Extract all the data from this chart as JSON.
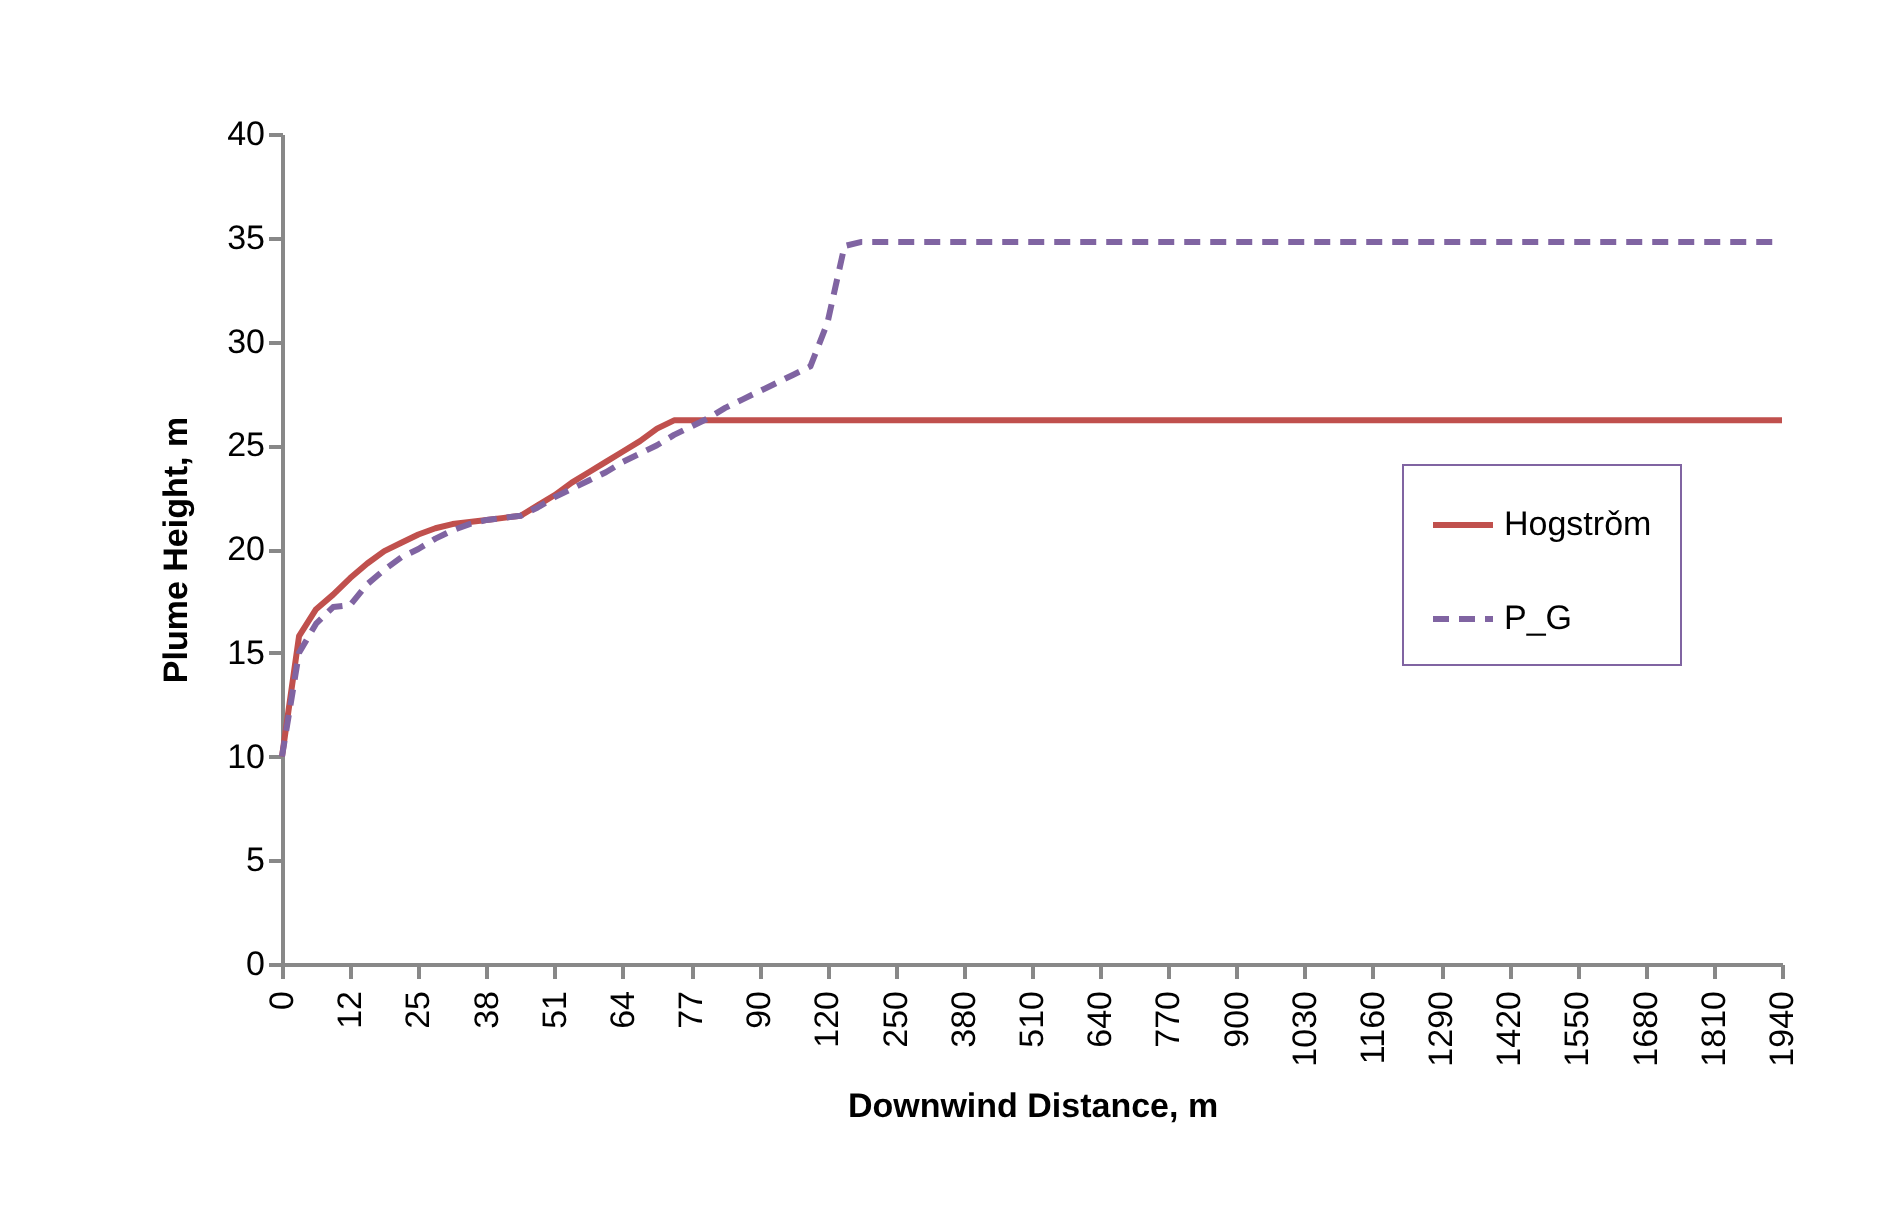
{
  "chart_data": {
    "type": "line",
    "xlabel": "Downwind Distance,  m",
    "ylabel": "Plume Height, m",
    "categories": [
      "0",
      null,
      null,
      null,
      "12",
      null,
      null,
      null,
      "25",
      null,
      null,
      null,
      "38",
      null,
      null,
      null,
      "51",
      null,
      null,
      null,
      "64",
      null,
      null,
      null,
      "77",
      null,
      null,
      null,
      "90",
      null,
      null,
      null,
      "120",
      null,
      null,
      null,
      "250",
      null,
      null,
      null,
      "380",
      null,
      null,
      null,
      "510",
      null,
      null,
      null,
      "640",
      null,
      null,
      null,
      "770",
      null,
      null,
      null,
      "900",
      null,
      null,
      null,
      "1030",
      null,
      null,
      null,
      "1160",
      null,
      null,
      null,
      "1290",
      null,
      null,
      null,
      "1420",
      null,
      null,
      null,
      "1550",
      null,
      null,
      null,
      "1680",
      null,
      null,
      null,
      "1810",
      null,
      null,
      null,
      "1940"
    ],
    "ylim": [
      0,
      40
    ],
    "yticks": [
      0,
      5,
      10,
      15,
      20,
      25,
      30,
      35,
      40
    ],
    "grid": false,
    "legend": "right",
    "series": [
      {
        "name": "Hogstrǒm",
        "color": "#c0504d",
        "line_style": "solid",
        "values": [
          10,
          15.8,
          17.1,
          17.8,
          18.6,
          19.3,
          19.9,
          20.3,
          20.7,
          21.0,
          21.2,
          21.3,
          21.4,
          21.5,
          21.6,
          22.1,
          22.6,
          23.2,
          23.7,
          24.2,
          24.7,
          25.2,
          25.8,
          26.2,
          26.2,
          26.2,
          26.2,
          26.2,
          26.2,
          26.2,
          26.2,
          26.2,
          26.2,
          26.2,
          26.2,
          26.2,
          26.2,
          26.2,
          26.2,
          26.2,
          26.2,
          26.2,
          26.2,
          26.2,
          26.2,
          26.2,
          26.2,
          26.2,
          26.2,
          26.2,
          26.2,
          26.2,
          26.2,
          26.2,
          26.2,
          26.2,
          26.2,
          26.2,
          26.2,
          26.2,
          26.2,
          26.2,
          26.2,
          26.2,
          26.2,
          26.2,
          26.2,
          26.2,
          26.2,
          26.2,
          26.2,
          26.2,
          26.2,
          26.2,
          26.2,
          26.2,
          26.2,
          26.2,
          26.2,
          26.2,
          26.2,
          26.2,
          26.2,
          26.2,
          26.2,
          26.2,
          26.2,
          26.2,
          26.2
        ]
      },
      {
        "name": "P_G",
        "color": "#8064a2",
        "line_style": "dashed",
        "values": [
          10,
          15.0,
          16.4,
          17.2,
          17.3,
          18.3,
          19.0,
          19.6,
          20.0,
          20.5,
          20.9,
          21.2,
          21.4,
          21.5,
          21.6,
          22.0,
          22.5,
          22.9,
          23.3,
          23.7,
          24.2,
          24.6,
          25.0,
          25.5,
          25.9,
          26.3,
          26.8,
          27.2,
          27.6,
          28.0,
          28.4,
          28.8,
          30.9,
          34.6,
          34.8,
          34.8,
          34.8,
          34.8,
          34.8,
          34.8,
          34.8,
          34.8,
          34.8,
          34.8,
          34.8,
          34.8,
          34.8,
          34.8,
          34.8,
          34.8,
          34.8,
          34.8,
          34.8,
          34.8,
          34.8,
          34.8,
          34.8,
          34.8,
          34.8,
          34.8,
          34.8,
          34.8,
          34.8,
          34.8,
          34.8,
          34.8,
          34.8,
          34.8,
          34.8,
          34.8,
          34.8,
          34.8,
          34.8,
          34.8,
          34.8,
          34.8,
          34.8,
          34.8,
          34.8,
          34.8,
          34.8,
          34.8,
          34.8,
          34.8,
          34.8,
          34.8,
          34.8,
          34.8,
          34.8
        ]
      }
    ]
  }
}
